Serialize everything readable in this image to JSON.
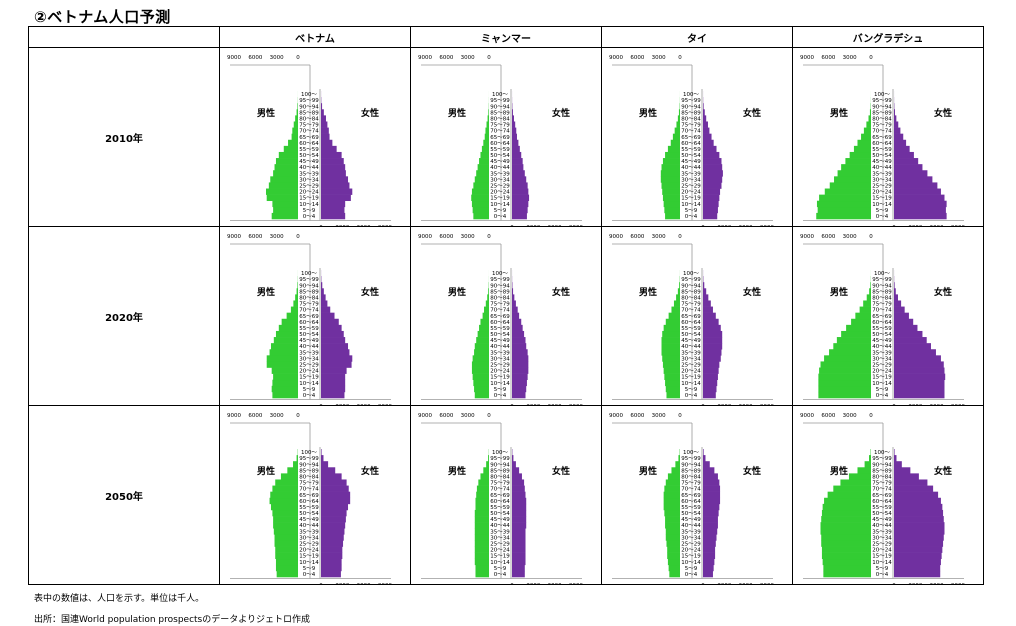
{
  "title": "②ベトナム人口予測",
  "columns": [
    "ベトナム",
    "ミャンマー",
    "タイ",
    "バングラデシュ"
  ],
  "rows": [
    "2010年",
    "2020年",
    "2050年"
  ],
  "note": "表中の数値は、人口を示す。単位は千人。",
  "source": "出所：国連World population prospectsのデータよりジェトロ作成",
  "chart_data": {
    "type": "bar",
    "orientation": "horizontal",
    "subtype": "population-pyramid",
    "unit": "千人",
    "male_label": "男性",
    "female_label": "女性",
    "male_color": "#33cc33",
    "female_color": "#7030a0",
    "axis_ticks": [
      0,
      3000,
      6000,
      9000
    ],
    "top_axis_ticks": [
      9000,
      6000,
      3000,
      0
    ],
    "xlim": [
      0,
      9000
    ],
    "age_groups": [
      "0～4",
      "5～9",
      "10～14",
      "15～19",
      "20～24",
      "25～29",
      "30～34",
      "35～39",
      "40～44",
      "45～49",
      "50～54",
      "55～59",
      "60～64",
      "65～69",
      "70～74",
      "75～79",
      "80～84",
      "85～89",
      "90～94",
      "95～99",
      "100～"
    ],
    "pyramids": [
      {
        "country": "ベトナム",
        "year": "2010年",
        "male": [
          3700,
          3500,
          3600,
          4400,
          4500,
          4100,
          3900,
          3500,
          3300,
          3100,
          2700,
          2000,
          1400,
          900,
          800,
          600,
          400,
          200,
          80,
          20,
          5
        ],
        "female": [
          3400,
          3300,
          3400,
          4200,
          4400,
          4000,
          3800,
          3500,
          3400,
          3200,
          2900,
          2200,
          1600,
          1200,
          1100,
          900,
          700,
          400,
          150,
          40,
          10
        ]
      },
      {
        "country": "ミャンマー",
        "year": "2010年",
        "male": [
          2200,
          2300,
          2400,
          2500,
          2400,
          2200,
          2000,
          1800,
          1600,
          1400,
          1200,
          1000,
          800,
          600,
          500,
          350,
          200,
          90,
          30,
          10,
          3
        ],
        "female": [
          2100,
          2200,
          2300,
          2400,
          2300,
          2200,
          2000,
          1800,
          1600,
          1500,
          1300,
          1100,
          900,
          700,
          600,
          450,
          280,
          130,
          50,
          15,
          5
        ]
      },
      {
        "country": "タイ",
        "year": "2010年",
        "male": [
          2100,
          2200,
          2300,
          2400,
          2500,
          2600,
          2700,
          2700,
          2600,
          2400,
          2100,
          1700,
          1300,
          1000,
          750,
          500,
          300,
          150,
          50,
          15,
          4
        ],
        "female": [
          2000,
          2100,
          2200,
          2300,
          2400,
          2600,
          2700,
          2800,
          2700,
          2600,
          2300,
          1900,
          1500,
          1200,
          900,
          700,
          450,
          250,
          90,
          25,
          6
        ]
      },
      {
        "country": "バングラデシュ",
        "year": "2010年",
        "male": [
          7700,
          7500,
          7600,
          7300,
          6500,
          5800,
          5200,
          4700,
          4200,
          3600,
          3000,
          2400,
          1900,
          1400,
          1000,
          650,
          350,
          150,
          50,
          15,
          4
        ],
        "female": [
          7400,
          7300,
          7400,
          7100,
          6600,
          6100,
          5400,
          4700,
          4000,
          3400,
          2800,
          2200,
          1700,
          1300,
          900,
          600,
          330,
          140,
          50,
          15,
          4
        ]
      },
      {
        "country": "ベトナム",
        "year": "2020年",
        "male": [
          3600,
          3700,
          3600,
          3500,
          3700,
          4400,
          4400,
          4000,
          3800,
          3400,
          3100,
          2700,
          2300,
          1600,
          1000,
          650,
          400,
          200,
          80,
          25,
          6
        ],
        "female": [
          3300,
          3400,
          3400,
          3400,
          3600,
          4300,
          4400,
          4000,
          3800,
          3400,
          3200,
          2900,
          2500,
          1900,
          1300,
          900,
          650,
          400,
          180,
          50,
          12
        ]
      },
      {
        "country": "ミャンマー",
        "year": "2020年",
        "male": [
          2000,
          2100,
          2200,
          2300,
          2400,
          2400,
          2300,
          2100,
          2000,
          1800,
          1600,
          1400,
          1200,
          900,
          700,
          450,
          250,
          110,
          40,
          10,
          3
        ],
        "female": [
          1900,
          2000,
          2100,
          2200,
          2300,
          2300,
          2300,
          2200,
          2000,
          1900,
          1700,
          1500,
          1300,
          1000,
          800,
          550,
          330,
          150,
          60,
          18,
          5
        ]
      },
      {
        "country": "タイ",
        "year": "2020年",
        "male": [
          1900,
          2000,
          2100,
          2200,
          2300,
          2400,
          2500,
          2600,
          2600,
          2600,
          2500,
          2300,
          2000,
          1600,
          1200,
          850,
          550,
          300,
          120,
          35,
          8
        ],
        "female": [
          1800,
          1900,
          2000,
          2100,
          2200,
          2300,
          2500,
          2600,
          2700,
          2700,
          2700,
          2500,
          2200,
          1800,
          1400,
          1100,
          750,
          450,
          180,
          50,
          12
        ]
      },
      {
        "country": "バングラデシュ",
        "year": "2020年",
        "male": [
          7400,
          7400,
          7400,
          7400,
          7300,
          7100,
          6600,
          5900,
          5300,
          4800,
          4200,
          3500,
          2800,
          2200,
          1600,
          1100,
          600,
          260,
          90,
          25,
          6
        ],
        "female": [
          7100,
          7100,
          7100,
          7200,
          7100,
          7000,
          6600,
          5900,
          5200,
          4600,
          4000,
          3300,
          2700,
          2100,
          1500,
          1000,
          560,
          250,
          90,
          25,
          6
        ]
      },
      {
        "country": "ベトナム",
        "year": "2050年",
        "male": [
          3000,
          3100,
          3100,
          3200,
          3200,
          3300,
          3300,
          3400,
          3500,
          3500,
          3600,
          3800,
          4000,
          3900,
          3600,
          3200,
          2400,
          1500,
          700,
          200,
          40
        ],
        "female": [
          2800,
          2900,
          2900,
          3000,
          3000,
          3100,
          3200,
          3300,
          3400,
          3500,
          3600,
          3800,
          4100,
          4100,
          3900,
          3600,
          2900,
          2000,
          1000,
          350,
          80
        ]
      },
      {
        "country": "ミャンマー",
        "year": "2050年",
        "male": [
          1900,
          1900,
          2000,
          2000,
          2000,
          2000,
          2000,
          2000,
          2000,
          2000,
          2000,
          1900,
          1900,
          1800,
          1700,
          1500,
          1200,
          800,
          400,
          130,
          30
        ],
        "female": [
          1800,
          1800,
          1900,
          1900,
          1900,
          1900,
          1900,
          1900,
          2000,
          2000,
          2000,
          2000,
          2000,
          1900,
          1800,
          1700,
          1400,
          1000,
          550,
          200,
          50
        ]
      },
      {
        "country": "タイ",
        "year": "2050年",
        "male": [
          1500,
          1600,
          1700,
          1800,
          1800,
          1900,
          2000,
          2000,
          2100,
          2100,
          2200,
          2300,
          2300,
          2300,
          2200,
          2000,
          1700,
          1200,
          650,
          220,
          50
        ],
        "female": [
          1400,
          1500,
          1600,
          1700,
          1700,
          1800,
          1900,
          2000,
          2100,
          2100,
          2200,
          2300,
          2400,
          2400,
          2400,
          2300,
          2100,
          1600,
          950,
          350,
          90
        ]
      },
      {
        "country": "バングラデシュ",
        "year": "2050年",
        "male": [
          6700,
          6700,
          6800,
          6900,
          6900,
          7000,
          7000,
          7100,
          7100,
          7000,
          6900,
          6800,
          6600,
          6100,
          5300,
          4300,
          3100,
          1900,
          900,
          280,
          60
        ],
        "female": [
          6500,
          6500,
          6600,
          6700,
          6800,
          6900,
          7000,
          7100,
          7100,
          7000,
          6900,
          6800,
          6600,
          6200,
          5500,
          4700,
          3500,
          2300,
          1100,
          350,
          80
        ]
      }
    ]
  }
}
